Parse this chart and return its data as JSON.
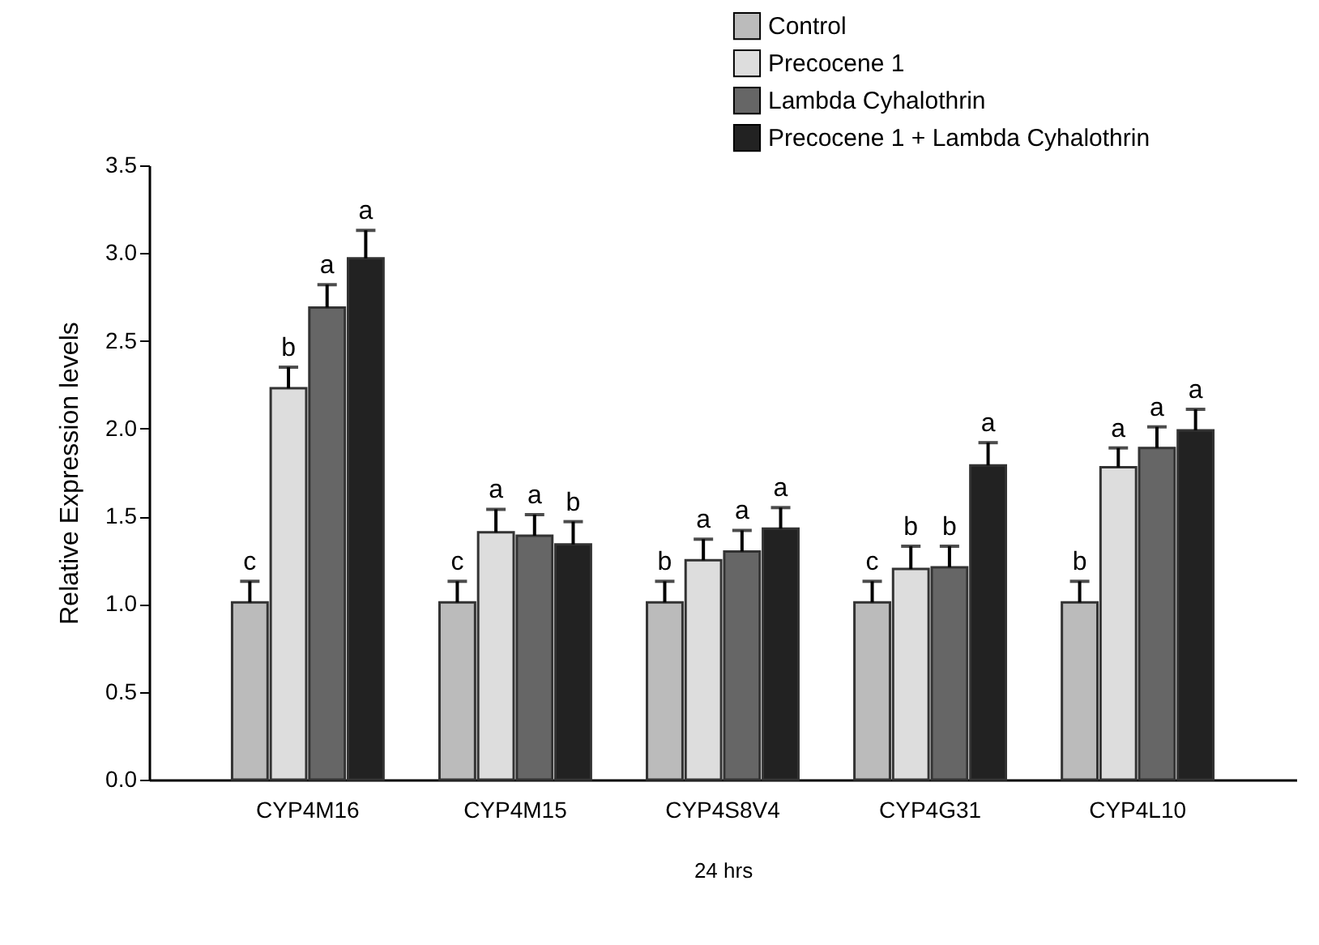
{
  "chart_data": {
    "type": "bar",
    "xlabel": "24 hrs",
    "ylabel": "Relative Expression levels",
    "categories": [
      "CYP4M16",
      "CYP4M15",
      "CYP4S8V4",
      "CYP4G31",
      "CYP4L10"
    ],
    "series": [
      {
        "name": "Control",
        "color": "#bbbbbb",
        "values": [
          1.01,
          1.01,
          1.01,
          1.01,
          1.01
        ],
        "errors": [
          [
            1.01,
            1.13
          ],
          [
            1.01,
            1.13
          ],
          [
            1.01,
            1.13
          ],
          [
            1.01,
            1.13
          ],
          [
            1.01,
            1.13
          ]
        ],
        "value_labels": [
          "c",
          "c",
          "b",
          "c",
          "b"
        ]
      },
      {
        "name": "Precocene 1",
        "color": "#dddddd",
        "values": [
          2.23,
          1.41,
          1.25,
          1.2,
          1.78
        ],
        "errors": [
          [
            2.23,
            2.35
          ],
          [
            1.41,
            1.54
          ],
          [
            1.25,
            1.37
          ],
          [
            1.2,
            1.33
          ],
          [
            1.78,
            1.89
          ]
        ],
        "value_labels": [
          "b",
          "a",
          "a",
          "b",
          "a"
        ]
      },
      {
        "name": "Lambda Cyhalothrin",
        "color": "#666666",
        "values": [
          2.69,
          1.39,
          1.3,
          1.21,
          1.89
        ],
        "errors": [
          [
            2.69,
            2.82
          ],
          [
            1.39,
            1.51
          ],
          [
            1.3,
            1.42
          ],
          [
            1.21,
            1.33
          ],
          [
            1.89,
            2.01
          ]
        ],
        "value_labels": [
          "a",
          "a",
          "a",
          "b",
          "a"
        ]
      },
      {
        "name": "Precocene 1 + Lambda Cyhalothrin",
        "color": "#222222",
        "values": [
          2.97,
          1.34,
          1.43,
          1.79,
          1.99
        ],
        "errors": [
          [
            2.97,
            3.13
          ],
          [
            1.34,
            1.47
          ],
          [
            1.43,
            1.55
          ],
          [
            1.79,
            1.92
          ],
          [
            1.99,
            2.11
          ]
        ],
        "value_labels": [
          "a",
          "b",
          "a",
          "a",
          "a"
        ]
      }
    ],
    "ylim": [
      0,
      3.5
    ],
    "yticks": [
      {
        "value": 0,
        "label": "0.0"
      },
      {
        "value": 0.5,
        "label": "0.5"
      },
      {
        "value": 1,
        "label": "1.0"
      },
      {
        "value": 1.5,
        "label": "1.5"
      },
      {
        "value": 2,
        "label": "2.0"
      },
      {
        "value": 2.5,
        "label": "2.5"
      },
      {
        "value": 3,
        "label": "3.0"
      },
      {
        "value": 3.5,
        "label": "3.5"
      }
    ],
    "legend": "top right",
    "grid": false
  }
}
